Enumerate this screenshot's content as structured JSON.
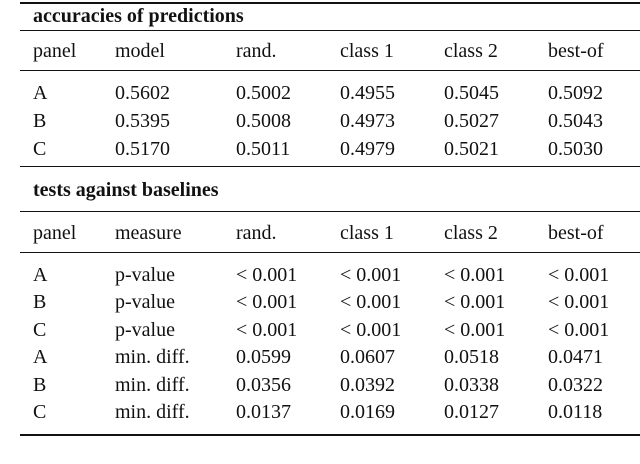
{
  "sections": [
    {
      "title": "accuracies of predictions",
      "header": [
        "panel",
        "model",
        "rand.",
        "class 1",
        "class 2",
        "best-of"
      ],
      "rows": [
        [
          "A",
          "0.5602",
          "0.5002",
          "0.4955",
          "0.5045",
          "0.5092"
        ],
        [
          "B",
          "0.5395",
          "0.5008",
          "0.4973",
          "0.5027",
          "0.5043"
        ],
        [
          "C",
          "0.5170",
          "0.5011",
          "0.4979",
          "0.5021",
          "0.5030"
        ]
      ]
    },
    {
      "title": "tests against baselines",
      "header": [
        "panel",
        "measure",
        "rand.",
        "class 1",
        "class 2",
        "best-of"
      ],
      "rows": [
        [
          "A",
          "p-value",
          "< 0.001",
          "< 0.001",
          "< 0.001",
          "< 0.001"
        ],
        [
          "B",
          "p-value",
          "< 0.001",
          "< 0.001",
          "< 0.001",
          "< 0.001"
        ],
        [
          "C",
          "p-value",
          "< 0.001",
          "< 0.001",
          "< 0.001",
          "< 0.001"
        ],
        [
          "A",
          "min. diff.",
          "0.0599",
          "0.0607",
          "0.0518",
          "0.0471"
        ],
        [
          "B",
          "min. diff.",
          "0.0356",
          "0.0392",
          "0.0338",
          "0.0322"
        ],
        [
          "C",
          "min. diff.",
          "0.0137",
          "0.0169",
          "0.0127",
          "0.0118"
        ]
      ]
    }
  ]
}
